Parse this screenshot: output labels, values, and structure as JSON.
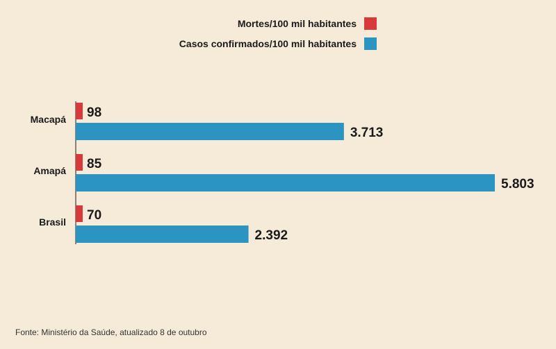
{
  "chart_data": {
    "type": "bar",
    "orientation": "horizontal",
    "categories": [
      "Macapá",
      "Amapá",
      "Brasil"
    ],
    "series": [
      {
        "name": "Mortes/100 mil habitantes",
        "color": "#d63a3a",
        "values": [
          98,
          85,
          70
        ],
        "labels": [
          "98",
          "85",
          "70"
        ]
      },
      {
        "name": "Casos confirmados/100 mil habitantes",
        "color": "#2b94c0",
        "values": [
          3713,
          5803,
          2392
        ],
        "labels": [
          "3.713",
          "5.803",
          "2.392"
        ]
      }
    ],
    "legend_position": "top-right",
    "source": "Fonte: Ministério da Saúde, atualizado 8 de outubro"
  },
  "colors": {
    "background": "#f6ead8"
  }
}
